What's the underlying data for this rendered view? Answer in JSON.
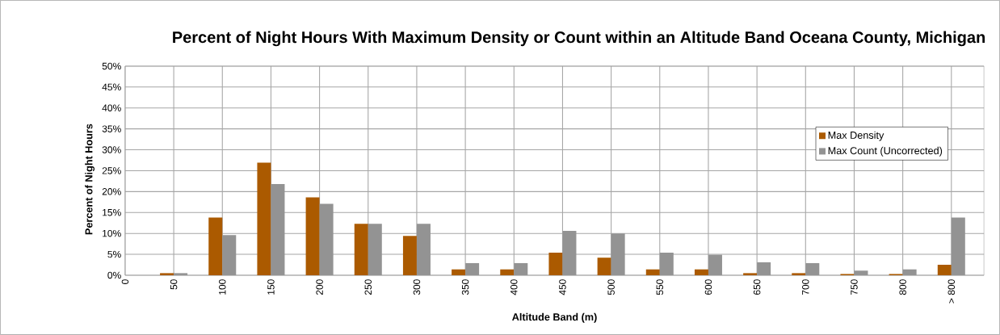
{
  "chart_data": {
    "type": "bar",
    "title": "Percent of Night Hours With Maximum Density or Count within an Altitude Band Oceana County, Michigan",
    "xlabel": "Altitude Band (m)",
    "ylabel": "Percent of Night Hours",
    "categories": [
      "0",
      "50",
      "100",
      "150",
      "200",
      "250",
      "300",
      "350",
      "400",
      "450",
      "500",
      "550",
      "600",
      "650",
      "700",
      "750",
      "800",
      "> 800"
    ],
    "series": [
      {
        "name": "Max Density",
        "color": "#ab5a00",
        "values": [
          0,
          0.5,
          13.8,
          26.9,
          18.6,
          12.3,
          9.4,
          1.4,
          1.4,
          5.4,
          4.2,
          1.4,
          1.4,
          0.5,
          0.5,
          0.3,
          0.3,
          2.5
        ]
      },
      {
        "name": "Max Count (Uncorrected)",
        "color": "#939393",
        "values": [
          0,
          0.5,
          9.6,
          21.8,
          17.1,
          12.3,
          12.3,
          2.9,
          2.9,
          10.6,
          10.0,
          5.4,
          4.9,
          3.1,
          2.9,
          1.1,
          1.4,
          13.8
        ]
      }
    ],
    "ylim": [
      0,
      50
    ],
    "yticks": [
      {
        "value": 0,
        "label": "0%"
      },
      {
        "value": 5,
        "label": "5%"
      },
      {
        "value": 10,
        "label": "10%"
      },
      {
        "value": 15,
        "label": "15%"
      },
      {
        "value": 20,
        "label": "20%"
      },
      {
        "value": 25,
        "label": "25%"
      },
      {
        "value": 30,
        "label": "30%"
      },
      {
        "value": 35,
        "label": "35%"
      },
      {
        "value": 40,
        "label": "40%"
      },
      {
        "value": 45,
        "label": "45%"
      },
      {
        "value": 50,
        "label": "50%"
      }
    ],
    "grid": true,
    "legend": "right"
  }
}
